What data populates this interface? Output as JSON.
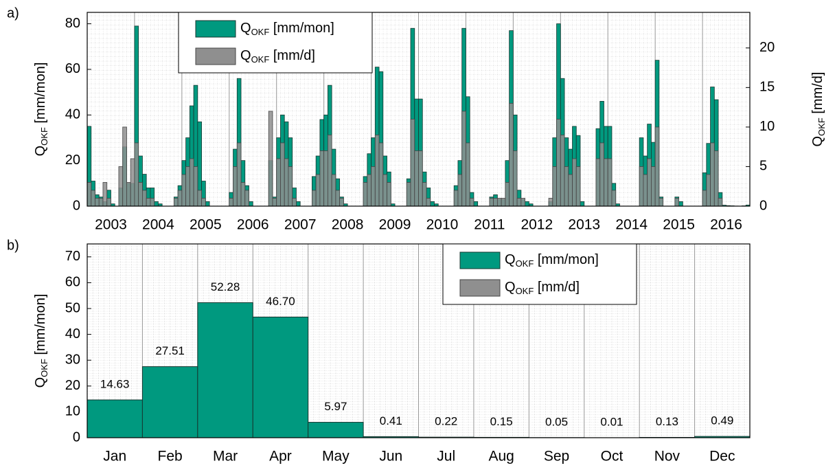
{
  "chart_data": [
    {
      "type": "step",
      "panel": "a)",
      "ylabel": {
        "main": "Q",
        "sub": "OKF",
        "unit": " [mm/mon]"
      },
      "y2label": {
        "main": "Q",
        "sub": "OKF",
        "unit": " [mm/d]"
      },
      "categories": [
        "2003",
        "2004",
        "2005",
        "2006",
        "2007",
        "2008",
        "2009",
        "2010",
        "2011",
        "2012",
        "2013",
        "2014",
        "2015",
        "2016"
      ],
      "ylim": [
        0,
        85
      ],
      "yticks": [
        0,
        20,
        40,
        60,
        80
      ],
      "y2lim": [
        0,
        24.5
      ],
      "y2ticks": [
        0,
        5,
        10,
        15,
        20
      ],
      "grid": true,
      "legend": "top-left",
      "series": [
        {
          "name": "Q",
          "name_sub": "OKF",
          "name_unit": " [mm/mon]",
          "color": "#00997f",
          "edge": "#17362f",
          "values": [
            [
              35,
              11,
              5,
              4,
              2,
              7,
              1,
              0,
              8,
              26,
              10,
              10
            ],
            [
              79,
              22,
              14,
              8,
              8,
              2,
              1,
              0,
              0,
              0,
              4,
              9
            ],
            [
              20,
              30,
              44,
              53,
              37,
              11,
              2,
              0,
              0,
              0,
              0,
              0
            ],
            [
              6,
              25,
              56,
              20,
              9,
              2,
              0,
              0,
              0,
              0,
              20,
              4
            ],
            [
              30,
              40,
              37,
              30,
              8,
              2,
              0,
              0,
              0,
              13,
              22,
              38
            ],
            [
              40,
              53,
              25,
              12,
              4,
              1,
              0,
              0,
              0,
              0,
              13,
              23
            ],
            [
              30,
              61,
              59,
              22,
              15,
              1,
              0,
              0,
              0,
              12,
              78,
              47
            ],
            [
              47,
              15,
              8,
              2,
              1,
              0,
              0,
              0,
              0,
              9,
              20,
              78
            ],
            [
              48,
              6,
              2,
              0,
              0,
              0,
              4,
              5,
              3,
              3,
              20,
              77
            ],
            [
              40,
              7,
              3,
              2,
              1,
              0,
              0,
              0,
              0,
              2,
              30,
              80
            ],
            [
              56,
              30,
              25,
              35,
              31,
              2,
              0,
              0,
              0,
              34,
              46,
              35
            ],
            [
              35,
              10,
              1,
              0,
              0,
              0,
              0,
              0,
              30,
              22,
              36,
              28
            ],
            [
              64,
              4,
              0,
              0,
              0,
              4,
              2,
              0,
              0,
              0,
              0,
              0
            ],
            [
              14.63,
              27.51,
              52.28,
              46.7,
              5.97,
              0.41,
              0.22,
              0.15,
              0.05,
              0.01,
              0.13,
              0.49
            ]
          ]
        },
        {
          "name": "Q",
          "name_sub": "OKF",
          "name_unit": " [mm/d]",
          "color": "#8f8f8f",
          "edge": "#444444",
          "axis": "y2",
          "values": [
            [
              3,
              2,
              1,
              1,
              3,
              1,
              0,
              0,
              5,
              10,
              3,
              6
            ],
            [
              8,
              3,
              2,
              1,
              1,
              0,
              0,
              0,
              0,
              0,
              1,
              2
            ],
            [
              4,
              5,
              6,
              5,
              2,
              1,
              0,
              0,
              0,
              0,
              0,
              0
            ],
            [
              1,
              5,
              8,
              3,
              2,
              0,
              0,
              0,
              0,
              0,
              12,
              1
            ],
            [
              6,
              8,
              6,
              5,
              1,
              0,
              0,
              0,
              0,
              2,
              4,
              7
            ],
            [
              7,
              9,
              4,
              2,
              1,
              0,
              0,
              0,
              0,
              0,
              3,
              4
            ],
            [
              5,
              9,
              8,
              4,
              3,
              0,
              0,
              0,
              0,
              3,
              11,
              7
            ],
            [
              7,
              3,
              1,
              0,
              0,
              0,
              0,
              0,
              0,
              2,
              4,
              12
            ],
            [
              8,
              1,
              0,
              0,
              0,
              0,
              1,
              1,
              1,
              1,
              3,
              13
            ],
            [
              7,
              1,
              1,
              0,
              0,
              0,
              0,
              0,
              0,
              1,
              5,
              11
            ],
            [
              9,
              5,
              4,
              6,
              5,
              0,
              0,
              0,
              0,
              6,
              8,
              6
            ],
            [
              6,
              2,
              0,
              0,
              0,
              0,
              0,
              0,
              5,
              4,
              6,
              5
            ],
            [
              10,
              1,
              0,
              0,
              0,
              1,
              0,
              0,
              0,
              0,
              0,
              0
            ],
            [
              2,
              4,
              8,
              7,
              1,
              0,
              0,
              0,
              0,
              0,
              0,
              0
            ]
          ]
        }
      ]
    },
    {
      "type": "bar",
      "panel": "b)",
      "ylabel": {
        "main": "Q",
        "sub": "OKF",
        "unit": " [mm/mon]"
      },
      "categories": [
        "Jan",
        "Feb",
        "Mar",
        "Apr",
        "May",
        "Jun",
        "Jul",
        "Aug",
        "Sep",
        "Oct",
        "Nov",
        "Dec"
      ],
      "ylim": [
        0,
        75
      ],
      "yticks": [
        0,
        10,
        20,
        30,
        40,
        50,
        60,
        70
      ],
      "grid": true,
      "legend": "top-right",
      "series": [
        {
          "name": "Q",
          "name_sub": "OKF",
          "name_unit": " [mm/mon]",
          "color": "#00997f",
          "edge": "#17362f",
          "values": [
            14.63,
            27.51,
            52.28,
            46.7,
            5.97,
            0.41,
            0.22,
            0.15,
            0.05,
            0.01,
            0.13,
            0.49
          ],
          "value_labels": [
            "14.63",
            "27.51",
            "52.28",
            "46.70",
            "5.97",
            "0.41",
            "0.22",
            "0.15",
            "0.05",
            "0.01",
            "0.13",
            "0.49"
          ]
        },
        {
          "name": "Q",
          "name_sub": "OKF",
          "name_unit": " [mm/d]",
          "color": "#8f8f8f",
          "edge": "#444444"
        }
      ]
    }
  ]
}
